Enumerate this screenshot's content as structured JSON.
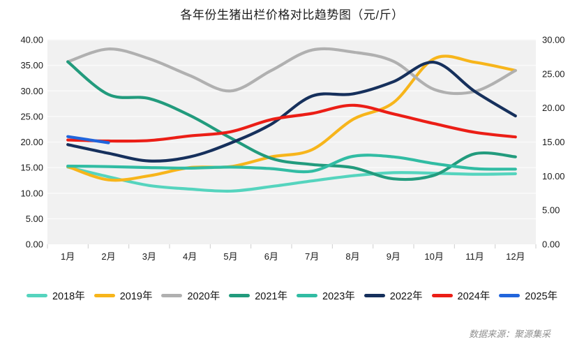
{
  "source_note": "数据来源：聚源集采",
  "chart_data": {
    "type": "line",
    "title": "各年份生猪出栏价格对比趋势图（元/斤）",
    "categories": [
      "1月",
      "2月",
      "3月",
      "4月",
      "5月",
      "6月",
      "7月",
      "8月",
      "9月",
      "10月",
      "11月",
      "12月"
    ],
    "left_axis": {
      "min": 0,
      "max": 40,
      "step": 5,
      "ticks": [
        "0.00",
        "5.00",
        "10.00",
        "15.00",
        "20.00",
        "25.00",
        "30.00",
        "35.00",
        "40.00"
      ]
    },
    "right_axis": {
      "min": 0,
      "max": 30,
      "step": 5,
      "ticks": [
        "0.00",
        "5.00",
        "10.00",
        "15.00",
        "20.00",
        "25.00",
        "30.00"
      ]
    },
    "grid": true,
    "legend_position": "bottom",
    "plot_background": "#f1f1f1",
    "series": [
      {
        "key": "2018",
        "name": "2018年",
        "color": "#55d4be",
        "axis": "left",
        "values": [
          15.1,
          13.2,
          11.5,
          10.8,
          10.4,
          11.3,
          12.4,
          13.4,
          14.0,
          13.9,
          13.7,
          13.8
        ]
      },
      {
        "key": "2019",
        "name": "2019年",
        "color": "#f7b51b",
        "axis": "left",
        "values": [
          15.2,
          12.6,
          13.4,
          15.0,
          15.2,
          17.1,
          18.5,
          24.4,
          27.7,
          36.3,
          35.6,
          34.0
        ]
      },
      {
        "key": "2020",
        "name": "2020年",
        "color": "#b0b0b0",
        "axis": "left",
        "values": [
          35.7,
          38.2,
          36.3,
          33.0,
          30.0,
          34.0,
          38.0,
          37.6,
          35.8,
          30.3,
          29.9,
          34.0
        ]
      },
      {
        "key": "2021",
        "name": "2021年",
        "color": "#229b7d",
        "axis": "left",
        "values": [
          35.7,
          29.3,
          28.5,
          25.2,
          20.8,
          16.8,
          15.6,
          15.0,
          12.8,
          13.5,
          17.7,
          17.1
        ]
      },
      {
        "key": "2023",
        "name": "2023年",
        "color": "#31bca3",
        "axis": "left",
        "values": [
          15.3,
          15.2,
          15.0,
          14.9,
          15.1,
          14.8,
          14.3,
          17.2,
          17.1,
          15.8,
          14.8,
          14.7
        ]
      },
      {
        "key": "2022",
        "name": "2022年",
        "color": "#16305c",
        "axis": "left",
        "values": [
          19.5,
          17.8,
          16.3,
          17.1,
          19.8,
          23.5,
          29.0,
          29.4,
          31.8,
          35.6,
          29.9,
          25.1
        ]
      },
      {
        "key": "2024",
        "name": "2024年",
        "color": "#eb1e16",
        "axis": "left",
        "values": [
          20.4,
          20.2,
          20.3,
          21.2,
          22.0,
          24.4,
          25.6,
          27.2,
          25.5,
          23.6,
          21.9,
          21.0
        ]
      },
      {
        "key": "2025",
        "name": "2025年",
        "color": "#2165dc",
        "axis": "right",
        "values": [
          15.8,
          14.9,
          null,
          null,
          null,
          null,
          null,
          null,
          null,
          null,
          null,
          null
        ]
      }
    ]
  }
}
